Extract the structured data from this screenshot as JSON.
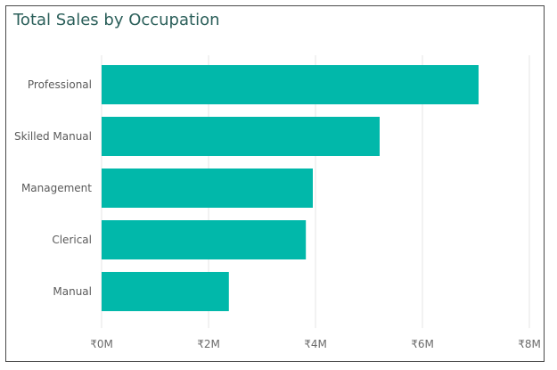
{
  "chart_data": {
    "type": "bar",
    "orientation": "horizontal",
    "title": "Total Sales by Occupation",
    "categories": [
      "Professional",
      "Skilled Manual",
      "Management",
      "Clerical",
      "Manual"
    ],
    "values": [
      7050000,
      5200000,
      3950000,
      3820000,
      2380000
    ],
    "x_ticks": [
      "₹0M",
      "₹2M",
      "₹4M",
      "₹6M",
      "₹8M"
    ],
    "x_tick_values": [
      0,
      2000000,
      4000000,
      6000000,
      8000000
    ],
    "xlim": [
      0,
      8000000
    ],
    "grid": true,
    "colors": {
      "bar": "#01B8AA",
      "grid": "#e6e6e6",
      "title": "#2b5f5a"
    }
  }
}
